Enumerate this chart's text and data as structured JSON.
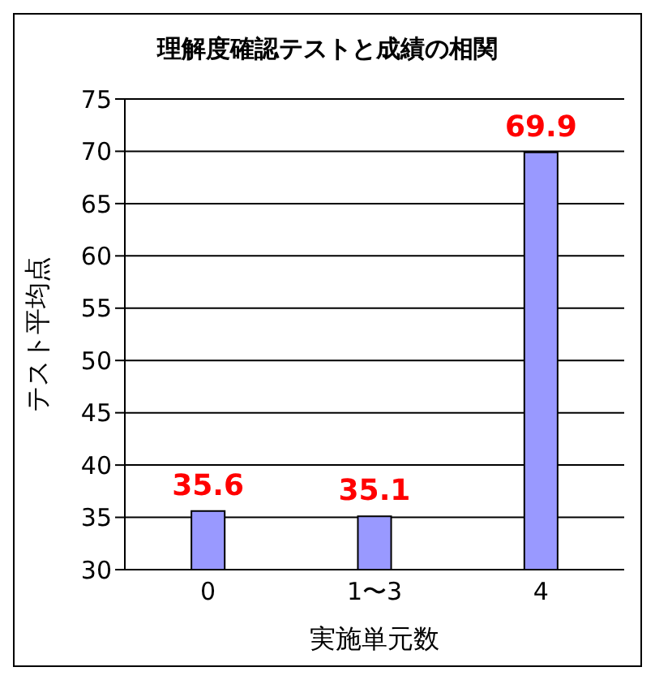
{
  "chart_data": {
    "type": "bar",
    "title": "理解度確認テストと成績の相関",
    "xlabel": "実施単元数",
    "ylabel": "テスト平均点",
    "categories": [
      "0",
      "1〜3",
      "4"
    ],
    "series": [
      {
        "color": "#9999ff",
        "values": [
          35.6,
          35.1,
          69.9
        ]
      }
    ],
    "ylim": [
      30,
      75
    ],
    "yticks": [
      30,
      35,
      40,
      45,
      50,
      55,
      60,
      65,
      70,
      75
    ],
    "grid": "y",
    "data_labels": true
  }
}
